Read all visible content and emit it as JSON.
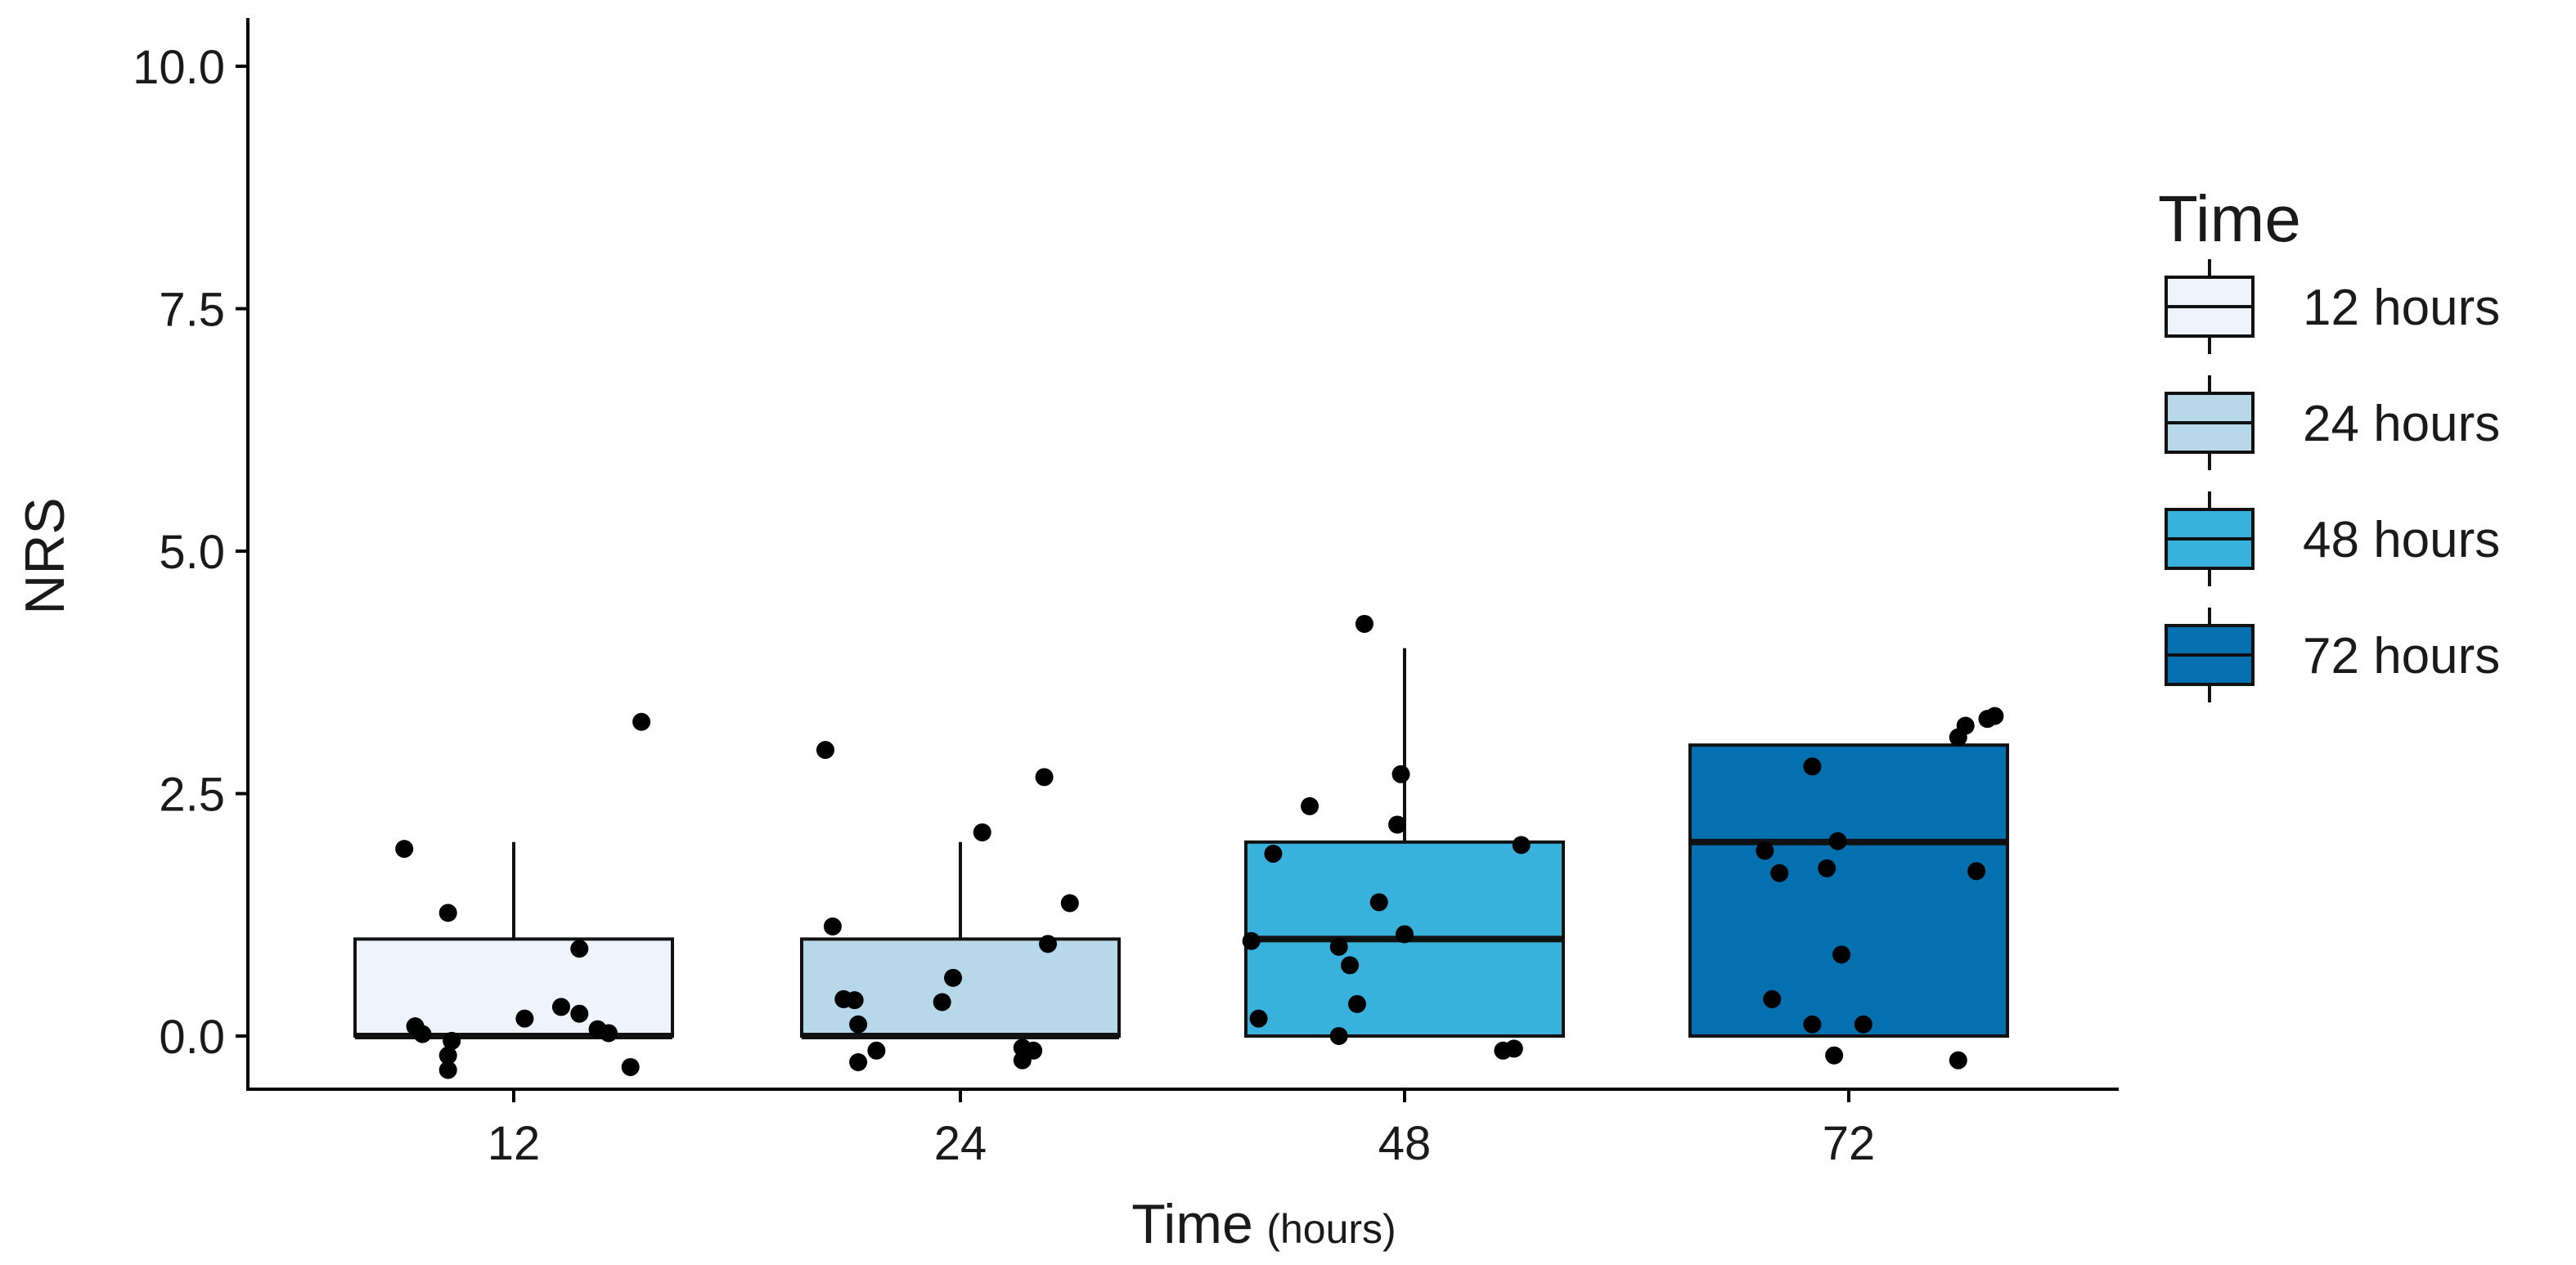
{
  "chart_data": {
    "type": "box",
    "title": "",
    "xlabel": "Time",
    "xlabel_unit": "(hours)",
    "ylabel": "NRS",
    "ylim": [
      -0.5,
      10.3
    ],
    "yticks": [
      "0.0",
      "2.5",
      "5.0",
      "7.5",
      "10.0"
    ],
    "ytick_values": [
      0,
      2.5,
      5.0,
      7.5,
      10.0
    ],
    "grid": false,
    "legend": {
      "title": "Time",
      "position": "right"
    },
    "categories": [
      "12",
      "24",
      "48",
      "72"
    ],
    "series": [
      {
        "name": "12 hours",
        "color": "#eef3fd",
        "whisker_low": 0,
        "q1": 0,
        "median": 0,
        "q3": 1,
        "whisker_high": 2,
        "points": [
          {
            "x": -0.3,
            "y": 1.93
          },
          {
            "x": -0.27,
            "y": 0.1
          },
          {
            "x": -0.25,
            "y": 0.02
          },
          {
            "x": -0.18,
            "y": 1.27
          },
          {
            "x": -0.17,
            "y": -0.05
          },
          {
            "x": -0.18,
            "y": -0.2
          },
          {
            "x": -0.18,
            "y": -0.35
          },
          {
            "x": 0.03,
            "y": 0.18
          },
          {
            "x": 0.13,
            "y": 0.3
          },
          {
            "x": 0.18,
            "y": 0.9
          },
          {
            "x": 0.18,
            "y": 0.23
          },
          {
            "x": 0.23,
            "y": 0.07
          },
          {
            "x": 0.26,
            "y": 0.03
          },
          {
            "x": 0.32,
            "y": -0.32
          },
          {
            "x": 0.35,
            "y": 3.24
          }
        ]
      },
      {
        "name": "24 hours",
        "color": "#b7d8e9",
        "whisker_low": 0,
        "q1": 0,
        "median": 0,
        "q3": 1,
        "whisker_high": 2,
        "points": [
          {
            "x": -0.37,
            "y": 2.95
          },
          {
            "x": -0.35,
            "y": 1.13
          },
          {
            "x": -0.32,
            "y": 0.38
          },
          {
            "x": -0.29,
            "y": 0.37
          },
          {
            "x": -0.28,
            "y": 0.12
          },
          {
            "x": -0.28,
            "y": -0.27
          },
          {
            "x": -0.23,
            "y": -0.15
          },
          {
            "x": -0.05,
            "y": 0.35
          },
          {
            "x": -0.02,
            "y": 0.6
          },
          {
            "x": 0.06,
            "y": 2.1
          },
          {
            "x": 0.17,
            "y": -0.12
          },
          {
            "x": 0.17,
            "y": -0.25
          },
          {
            "x": 0.2,
            "y": -0.15
          },
          {
            "x": 0.24,
            "y": 0.95
          },
          {
            "x": 0.23,
            "y": 2.67
          },
          {
            "x": 0.3,
            "y": 1.37
          }
        ]
      },
      {
        "name": "48 hours",
        "color": "#39b1dd",
        "whisker_low": 0,
        "q1": 0,
        "median": 1,
        "q3": 2,
        "whisker_high": 4,
        "points": [
          {
            "x": -0.42,
            "y": 0.98
          },
          {
            "x": -0.4,
            "y": 0.18
          },
          {
            "x": -0.36,
            "y": 1.88
          },
          {
            "x": -0.26,
            "y": 2.37
          },
          {
            "x": -0.18,
            "y": 0.0
          },
          {
            "x": -0.18,
            "y": 0.92
          },
          {
            "x": -0.15,
            "y": 0.73
          },
          {
            "x": -0.13,
            "y": 0.33
          },
          {
            "x": -0.07,
            "y": 1.38
          },
          {
            "x": -0.11,
            "y": 4.25
          },
          {
            "x": -0.02,
            "y": 2.18
          },
          {
            "x": -0.01,
            "y": 2.7
          },
          {
            "x": 0.0,
            "y": 1.05
          },
          {
            "x": 0.27,
            "y": -0.15
          },
          {
            "x": 0.3,
            "y": -0.13
          },
          {
            "x": 0.32,
            "y": 1.97
          }
        ]
      },
      {
        "name": "72 hours",
        "color": "#0570b0",
        "whisker_low": 0,
        "q1": 0,
        "median": 2,
        "q3": 3,
        "whisker_high": 3,
        "points": [
          {
            "x": -0.23,
            "y": 1.91
          },
          {
            "x": -0.21,
            "y": 0.38
          },
          {
            "x": -0.19,
            "y": 1.68
          },
          {
            "x": -0.1,
            "y": 0.12
          },
          {
            "x": -0.1,
            "y": 2.78
          },
          {
            "x": -0.06,
            "y": 1.73
          },
          {
            "x": -0.04,
            "y": -0.2
          },
          {
            "x": -0.03,
            "y": 2.01
          },
          {
            "x": -0.02,
            "y": 0.84
          },
          {
            "x": 0.04,
            "y": 0.12
          },
          {
            "x": 0.3,
            "y": 3.08
          },
          {
            "x": 0.3,
            "y": -0.25
          },
          {
            "x": 0.35,
            "y": 1.7
          },
          {
            "x": 0.32,
            "y": 3.2
          },
          {
            "x": 0.38,
            "y": 3.27
          },
          {
            "x": 0.4,
            "y": 3.3
          }
        ]
      }
    ]
  }
}
